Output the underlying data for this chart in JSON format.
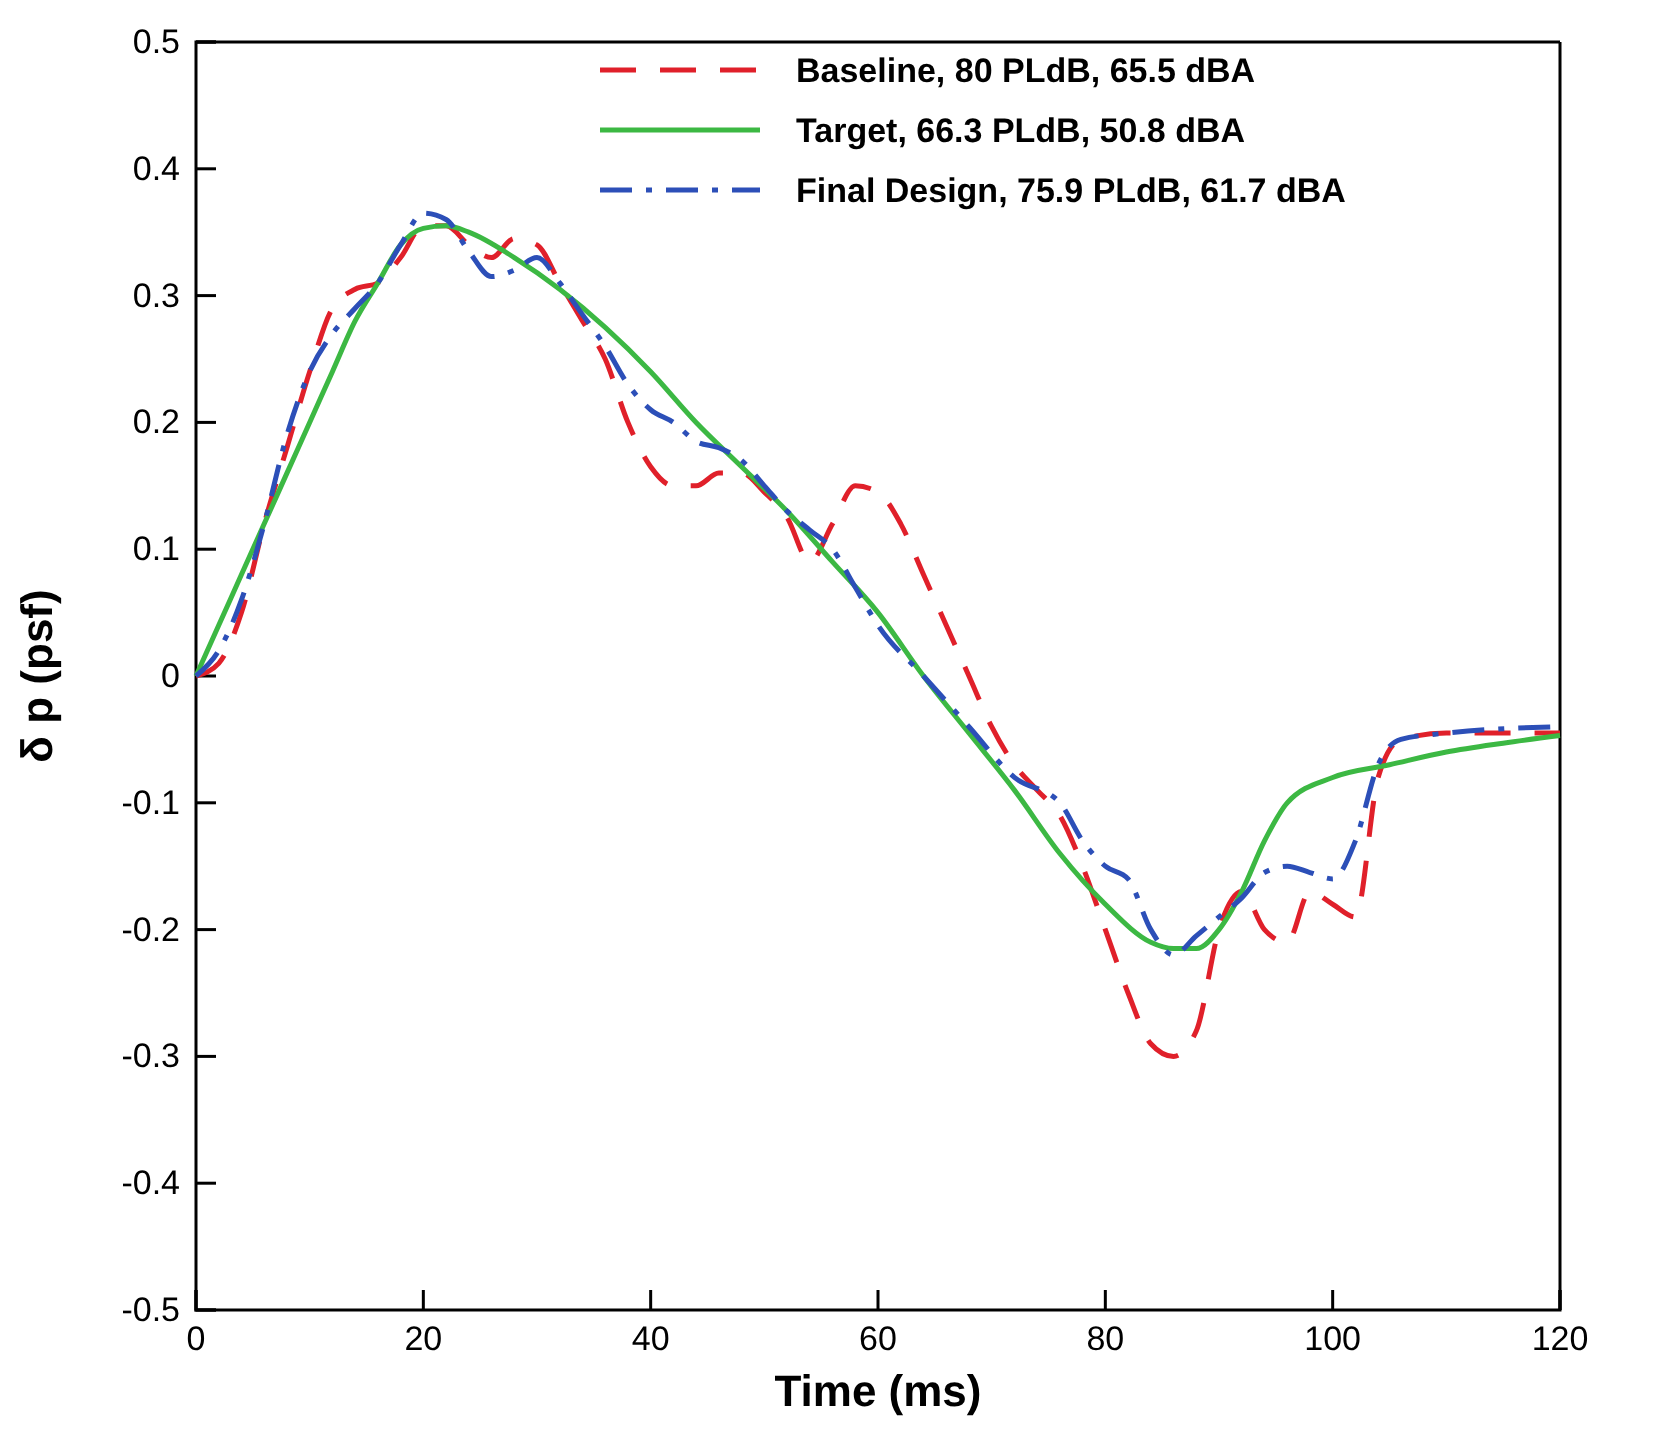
{
  "chart_data": {
    "type": "line",
    "xlabel": "Time (ms)",
    "ylabel": "δ p (psf)",
    "xlim": [
      0,
      120
    ],
    "ylim": [
      -0.5,
      0.5
    ],
    "xticks": [
      0,
      20,
      40,
      60,
      80,
      100,
      120
    ],
    "yticks": [
      -0.5,
      -0.4,
      -0.3,
      -0.2,
      -0.1,
      0,
      0.1,
      0.2,
      0.3,
      0.4,
      0.5
    ],
    "grid": false,
    "legend": "top right",
    "marker": "none",
    "series": [
      {
        "name": "Baseline, 80 PLdB, 65.5 dBA",
        "color": "#e0202a",
        "line_style": "dashed",
        "x": [
          0,
          2,
          4,
          6,
          8,
          10,
          12,
          14,
          16,
          18,
          20,
          22,
          24,
          26,
          28,
          30,
          32,
          34,
          36,
          38,
          40,
          42,
          44,
          46,
          48,
          50,
          52,
          54,
          56,
          58,
          60,
          62,
          64,
          66,
          68,
          70,
          72,
          74,
          76,
          78,
          80,
          82,
          84,
          86,
          88,
          90,
          92,
          94,
          96,
          98,
          100,
          102,
          104,
          106,
          110,
          120
        ],
        "values": [
          0,
          0.01,
          0.05,
          0.12,
          0.18,
          0.24,
          0.29,
          0.305,
          0.31,
          0.33,
          0.355,
          0.355,
          0.34,
          0.33,
          0.345,
          0.34,
          0.31,
          0.28,
          0.25,
          0.2,
          0.165,
          0.15,
          0.15,
          0.16,
          0.16,
          0.145,
          0.125,
          0.09,
          0.12,
          0.15,
          0.145,
          0.12,
          0.08,
          0.04,
          0,
          -0.04,
          -0.07,
          -0.09,
          -0.11,
          -0.15,
          -0.2,
          -0.25,
          -0.29,
          -0.3,
          -0.28,
          -0.2,
          -0.17,
          -0.2,
          -0.21,
          -0.17,
          -0.18,
          -0.19,
          -0.08,
          -0.05,
          -0.045,
          -0.045
        ]
      },
      {
        "name": "Target, 66.3 PLdB, 50.8 dBA",
        "color": "#3cb843",
        "line_style": "solid",
        "x": [
          0,
          2,
          4,
          6,
          8,
          10,
          12,
          14,
          16,
          18,
          20,
          22,
          24,
          28,
          32,
          36,
          40,
          44,
          48,
          52,
          56,
          60,
          64,
          68,
          72,
          76,
          80,
          84,
          86,
          88,
          90,
          92,
          94,
          96,
          100,
          105,
          110,
          115,
          120
        ],
        "values": [
          0,
          0.04,
          0.08,
          0.12,
          0.16,
          0.2,
          0.24,
          0.28,
          0.31,
          0.34,
          0.353,
          0.355,
          0.35,
          0.33,
          0.305,
          0.275,
          0.24,
          0.2,
          0.165,
          0.13,
          0.09,
          0.05,
          0,
          -0.045,
          -0.09,
          -0.14,
          -0.18,
          -0.21,
          -0.215,
          -0.215,
          -0.2,
          -0.17,
          -0.13,
          -0.1,
          -0.08,
          -0.07,
          -0.06,
          -0.053,
          -0.047
        ]
      },
      {
        "name": "Final Design, 75.9 PLdB, 61.7 dBA",
        "color": "#2c4fb8",
        "line_style": "dashdot",
        "x": [
          0,
          2,
          4,
          6,
          8,
          10,
          12,
          14,
          16,
          18,
          20,
          22,
          24,
          26,
          28,
          30,
          32,
          34,
          36,
          38,
          40,
          42,
          44,
          46,
          48,
          50,
          52,
          54,
          56,
          58,
          60,
          64,
          68,
          72,
          76,
          78,
          80,
          82,
          84,
          86,
          88,
          90,
          92,
          94,
          96,
          98,
          100,
          102,
          104,
          106,
          110,
          120
        ],
        "values": [
          0,
          0.02,
          0.06,
          0.12,
          0.19,
          0.24,
          0.27,
          0.29,
          0.31,
          0.34,
          0.365,
          0.36,
          0.335,
          0.315,
          0.32,
          0.33,
          0.31,
          0.285,
          0.26,
          0.23,
          0.21,
          0.2,
          0.185,
          0.18,
          0.17,
          0.15,
          0.13,
          0.115,
          0.1,
          0.07,
          0.04,
          0,
          -0.04,
          -0.08,
          -0.1,
          -0.13,
          -0.15,
          -0.16,
          -0.2,
          -0.22,
          -0.205,
          -0.19,
          -0.175,
          -0.155,
          -0.15,
          -0.155,
          -0.16,
          -0.13,
          -0.07,
          -0.05,
          -0.045,
          -0.04
        ]
      }
    ]
  }
}
